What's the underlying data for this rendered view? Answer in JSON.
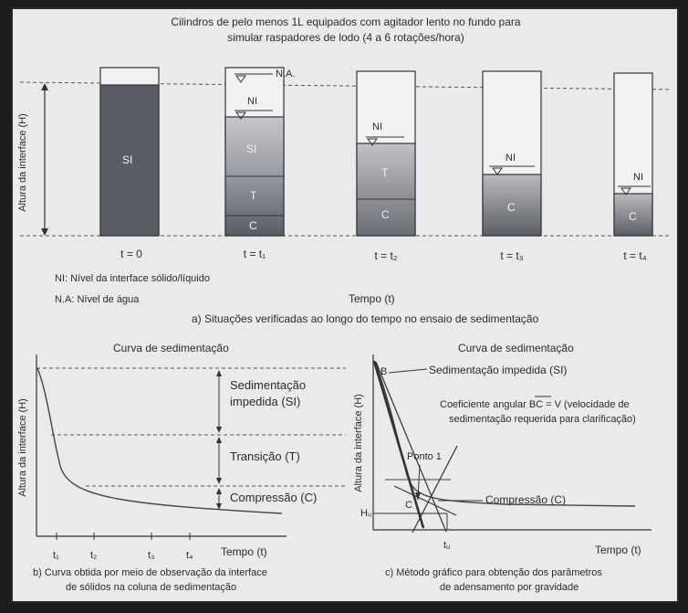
{
  "header": {
    "line1": "Cilindros de pelo menos 1L equipados com agitador lento no fundo para",
    "line2": "simular raspadores de lodo (4 a 6 rotações/hora)"
  },
  "panel_a": {
    "y_axis_label": "Altura da interface (H)",
    "cylinders": [
      {
        "time": "t = 0",
        "zones": [
          "SI"
        ]
      },
      {
        "time": "t = t₁",
        "zones": [
          "SI",
          "T",
          "C"
        ],
        "labels": [
          "N.A.",
          "NI"
        ]
      },
      {
        "time": "t = t₂",
        "zones": [
          "T",
          "C"
        ],
        "labels": [
          "NI"
        ]
      },
      {
        "time": "t = t₃",
        "zones": [
          "C"
        ],
        "labels": [
          "NI"
        ]
      },
      {
        "time": "t = t₄",
        "zones": [
          "C"
        ],
        "labels": [
          "NI"
        ]
      }
    ],
    "legend_ni": "NI: Nível da interface sólido/líquido",
    "legend_na": "N.A: Nível de água",
    "time_label": "Tempo (t)",
    "caption": "a) Situações verificadas ao longo do tempo no ensaio de sedimentação"
  },
  "panel_b": {
    "title": "Curva de sedimentação",
    "y_axis_label": "Altura da interface (H)",
    "x_axis_label": "Tempo (t)",
    "ticks": [
      "t₁",
      "t₂",
      "t₃",
      "t₄"
    ],
    "zones": [
      {
        "line1": "Sedimentação",
        "line2": "impedida (SI)"
      },
      {
        "line1": "Transição (T)",
        "line2": ""
      },
      {
        "line1": "Compressão (C)",
        "line2": ""
      }
    ],
    "caption_line1": "b) Curva obtida por meio de observação da interface",
    "caption_line2": "de sólidos na coluna de sedimentação"
  },
  "panel_c": {
    "title": "Curva de sedimentação",
    "y_axis_label": "Altura da interface (H)",
    "x_axis_label": "Tempo (t)",
    "point_b": "B",
    "point_c": "C",
    "si_label": "Sedimentação impedida (SI)",
    "coef_line1": "Coeficiente angular BC = V (velocidade de",
    "coef_line2": "sedimentação requerida para clarificação)",
    "ponto1": "Ponto 1",
    "compressao": "Compressão (C)",
    "hu": "Hᵤ",
    "tu": "tᵤ",
    "caption_line1": "c) Método gráfico para obtenção dos parâmetros",
    "caption_line2": "de adensamento por gravidade"
  },
  "colors": {
    "dark": "#5a5c63",
    "light": "#c4c6cb",
    "paper": "#e9eaec"
  }
}
